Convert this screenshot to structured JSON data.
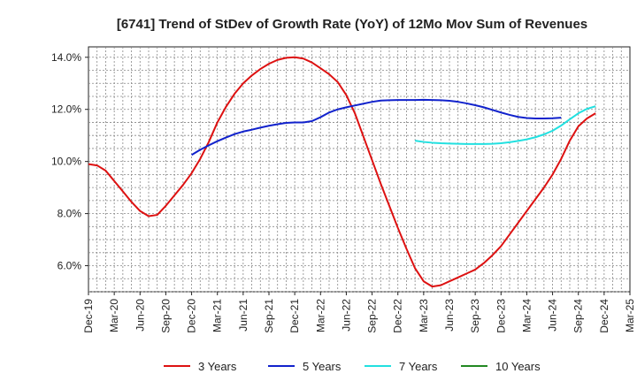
{
  "chart_data": {
    "type": "line",
    "title": "[6741]  Trend of StDev of Growth Rate (YoY) of 12Mo Mov Sum of Revenues",
    "xlabel": "",
    "ylabel": "",
    "x_ticks": [
      "Dec-19",
      "Mar-20",
      "Jun-20",
      "Sep-20",
      "Dec-20",
      "Mar-21",
      "Jun-21",
      "Sep-21",
      "Dec-21",
      "Mar-22",
      "Jun-22",
      "Sep-22",
      "Dec-22",
      "Mar-23",
      "Jun-23",
      "Sep-23",
      "Dec-23",
      "Mar-24",
      "Jun-24",
      "Sep-24",
      "Dec-24",
      "Mar-25"
    ],
    "y_ticks": [
      "6.0%",
      "8.0%",
      "10.0%",
      "12.0%",
      "14.0%"
    ],
    "ylim": [
      5.0,
      14.4
    ],
    "grid": true,
    "legend_position": "bottom",
    "series": [
      {
        "name": "3 Years",
        "color": "#dd1111",
        "start": "Dec-19",
        "values": [
          9.9,
          9.85,
          9.65,
          9.25,
          8.85,
          8.45,
          8.1,
          7.9,
          7.95,
          8.3,
          8.7,
          9.1,
          9.55,
          10.1,
          10.75,
          11.5,
          12.1,
          12.6,
          13.0,
          13.3,
          13.55,
          13.75,
          13.9,
          13.98,
          14.0,
          13.95,
          13.8,
          13.58,
          13.35,
          13.05,
          12.55,
          11.85,
          10.95,
          10.05,
          9.15,
          8.3,
          7.45,
          6.65,
          5.9,
          5.4,
          5.2,
          5.25,
          5.4,
          5.55,
          5.7,
          5.85,
          6.1,
          6.4,
          6.75,
          7.2,
          7.65,
          8.1,
          8.55,
          9.0,
          9.5,
          10.1,
          10.8,
          11.35,
          11.65,
          11.85
        ]
      },
      {
        "name": "5 Years",
        "color": "#1122cc",
        "start": "Dec-20",
        "values": [
          10.25,
          10.45,
          10.62,
          10.78,
          10.92,
          11.05,
          11.15,
          11.22,
          11.3,
          11.37,
          11.43,
          11.48,
          11.5,
          11.5,
          11.55,
          11.7,
          11.88,
          12.0,
          12.08,
          12.15,
          12.22,
          12.29,
          12.34,
          12.35,
          12.36,
          12.36,
          12.36,
          12.37,
          12.36,
          12.35,
          12.33,
          12.29,
          12.23,
          12.16,
          12.08,
          11.98,
          11.88,
          11.79,
          11.71,
          11.67,
          11.65,
          11.65,
          11.66,
          11.68
        ]
      },
      {
        "name": "7 Years",
        "color": "#22e0e0",
        "start": "Feb-23",
        "values": [
          10.8,
          10.75,
          10.72,
          10.7,
          10.69,
          10.68,
          10.67,
          10.67,
          10.67,
          10.68,
          10.7,
          10.74,
          10.79,
          10.85,
          10.93,
          11.04,
          11.18,
          11.38,
          11.62,
          11.85,
          12.02,
          12.12
        ]
      },
      {
        "name": "10 Years",
        "color": "#228822",
        "start": "Dec-24",
        "values": []
      }
    ]
  }
}
